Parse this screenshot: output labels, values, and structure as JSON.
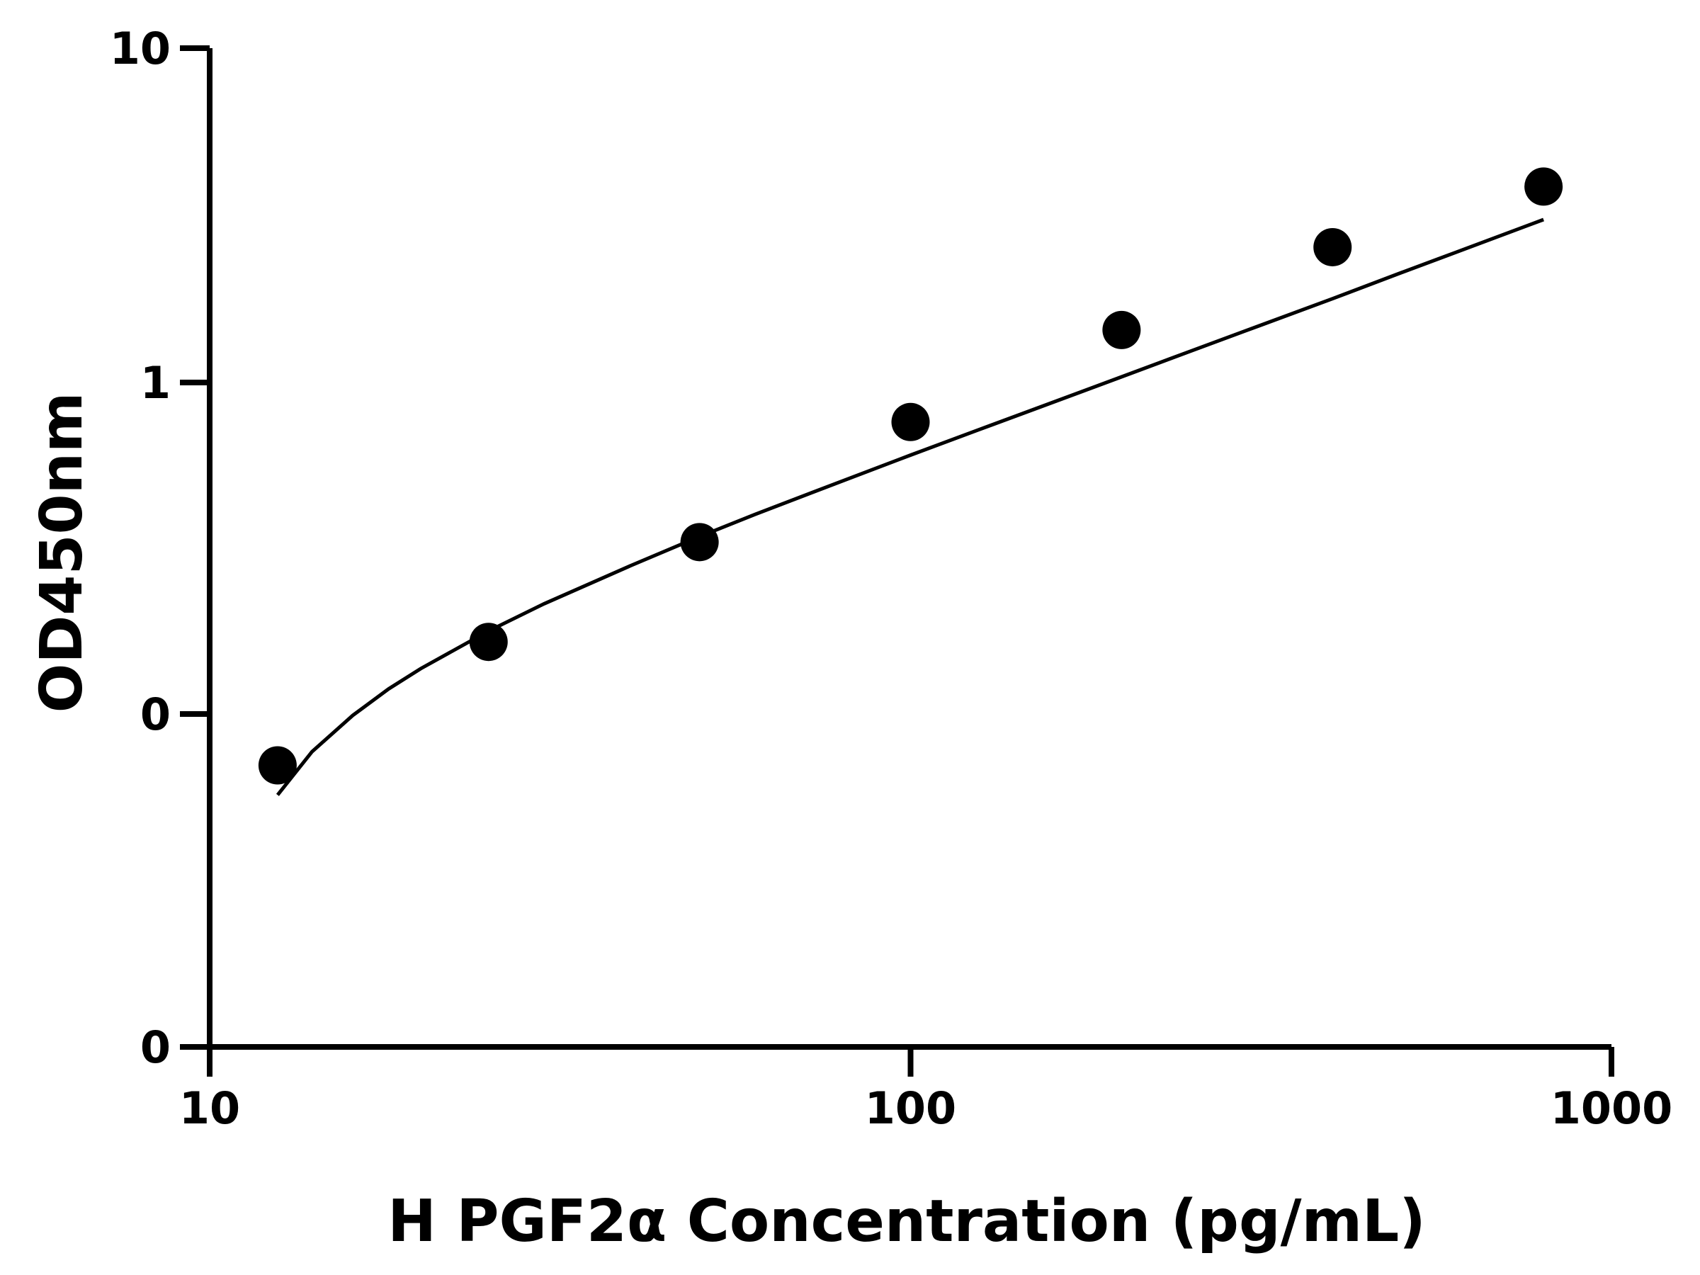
{
  "chart_data": {
    "type": "scatter",
    "title": "",
    "xlabel": "H PGF2α Concentration (pg/mL)",
    "ylabel": "OD450nm",
    "x_scale": "log",
    "y_scale": "log",
    "xlim": [
      10,
      1000
    ],
    "x_ticks": [
      "10",
      "100",
      "1000"
    ],
    "y_ticks": [
      "0",
      "0",
      "1",
      "10"
    ],
    "grid": false,
    "legend": "none",
    "series": [
      {
        "x": [
          12.5,
          25,
          50,
          100,
          200,
          400,
          800
        ],
        "y": [
          0.07,
          0.165,
          0.33,
          0.76,
          1.44,
          2.56,
          3.9
        ]
      }
    ],
    "fit_curve": {
      "x": [
        12.5,
        14,
        16,
        18,
        20,
        25,
        30,
        40,
        50,
        60,
        80,
        100,
        125,
        150,
        200,
        250,
        300,
        400,
        500,
        600,
        800
      ],
      "y": [
        0.057,
        0.077,
        0.099,
        0.119,
        0.137,
        0.178,
        0.215,
        0.281,
        0.343,
        0.4,
        0.505,
        0.604,
        0.72,
        0.83,
        1.04,
        1.24,
        1.43,
        1.79,
        2.14,
        2.47,
        3.1
      ]
    },
    "colors": {
      "points": "#000000",
      "curve": "#000000",
      "axes": "#000000"
    }
  }
}
